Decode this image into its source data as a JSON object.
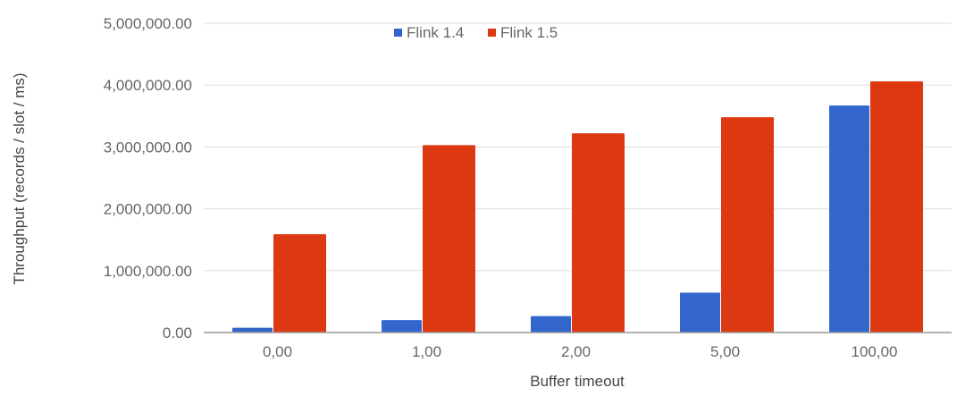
{
  "chart_data": {
    "type": "bar",
    "title": "",
    "xlabel": "Buffer timeout",
    "ylabel": "Throughput (records / slot / ms)",
    "categories": [
      "0,00",
      "1,00",
      "2,00",
      "5,00",
      "100,00"
    ],
    "ylim": [
      0,
      5000000
    ],
    "yticks": [
      "0.00",
      "1,000,000.00",
      "2,000,000.00",
      "3,000,000.00",
      "4,000,000.00",
      "5,000,000.00"
    ],
    "grid": true,
    "legend_position": "top",
    "series": [
      {
        "name": "Flink 1.4",
        "color": "#3366cc",
        "values": [
          77000,
          200000,
          265000,
          645000,
          3670000
        ]
      },
      {
        "name": "Flink 1.5",
        "color": "#dc3912",
        "values": [
          1590000,
          3030000,
          3220000,
          3480000,
          4060000
        ]
      }
    ]
  }
}
